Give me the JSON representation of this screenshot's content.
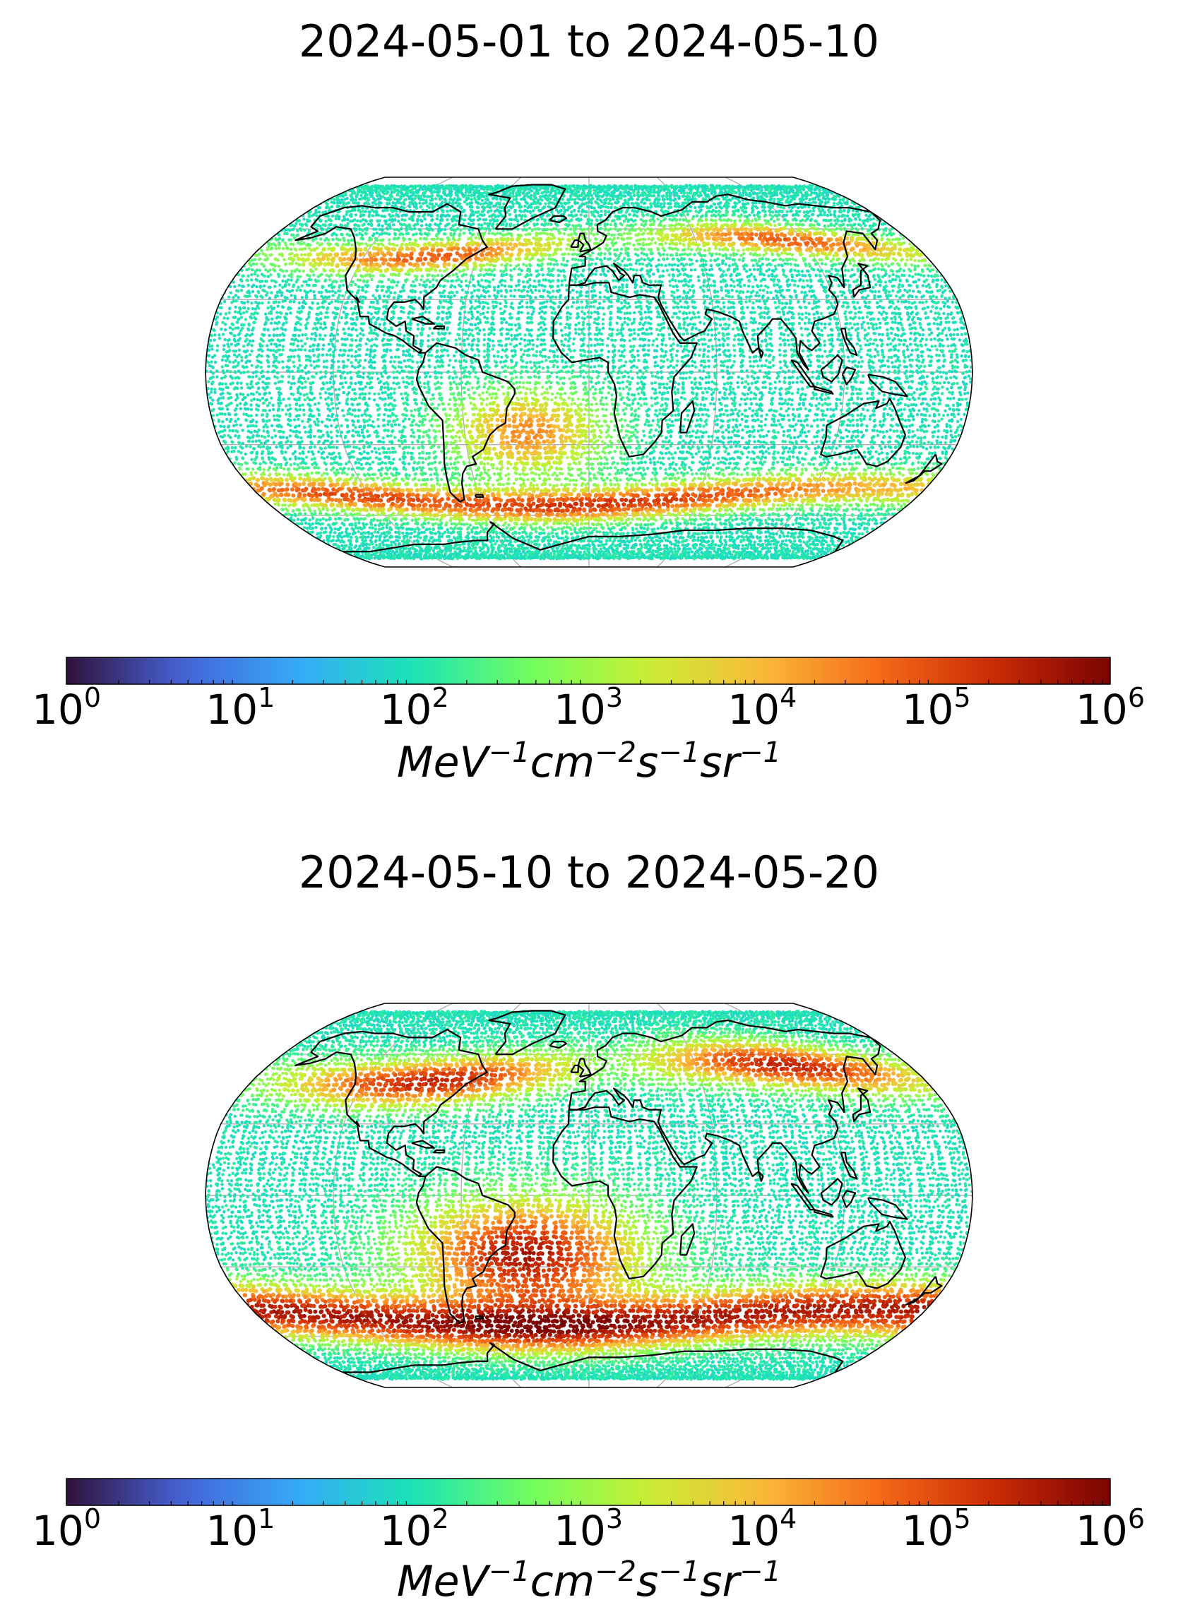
{
  "panels": [
    {
      "title": "2024-05-01 to 2024-05-10",
      "period": "first",
      "colorbar": {
        "ticks": [
          {
            "base": "10",
            "exp": "0"
          },
          {
            "base": "10",
            "exp": "1"
          },
          {
            "base": "10",
            "exp": "2"
          },
          {
            "base": "10",
            "exp": "3"
          },
          {
            "base": "10",
            "exp": "4"
          },
          {
            "base": "10",
            "exp": "5"
          },
          {
            "base": "10",
            "exp": "6"
          }
        ],
        "unit": {
          "p1": "MeV",
          "e1": "−1",
          "p2": "cm",
          "e2": "−2",
          "p3": "s",
          "e3": "−1",
          "p4": "sr",
          "e4": "−1"
        }
      }
    },
    {
      "title": "2024-05-10 to 2024-05-20",
      "period": "second",
      "colorbar": {
        "ticks": [
          {
            "base": "10",
            "exp": "0"
          },
          {
            "base": "10",
            "exp": "1"
          },
          {
            "base": "10",
            "exp": "2"
          },
          {
            "base": "10",
            "exp": "3"
          },
          {
            "base": "10",
            "exp": "4"
          },
          {
            "base": "10",
            "exp": "5"
          },
          {
            "base": "10",
            "exp": "6"
          }
        ],
        "unit": {
          "p1": "MeV",
          "e1": "−1",
          "p2": "cm",
          "e2": "−2",
          "p3": "s",
          "e3": "−1",
          "p4": "sr",
          "e4": "−1"
        }
      }
    }
  ],
  "map": {
    "projection": "robinson",
    "graticule": true,
    "scale": "log",
    "colormap": "turbo",
    "colorbar_range": [
      1,
      1000000
    ],
    "colors": {
      "graticule": "#b0b0b0",
      "coast": "#000000",
      "colormap_stops": [
        "#30123b",
        "#4662d7",
        "#36aaf9",
        "#1ae4b6",
        "#72fe5e",
        "#c8ef34",
        "#faba39",
        "#f66b19",
        "#ca2a04",
        "#7a0403"
      ]
    }
  }
}
